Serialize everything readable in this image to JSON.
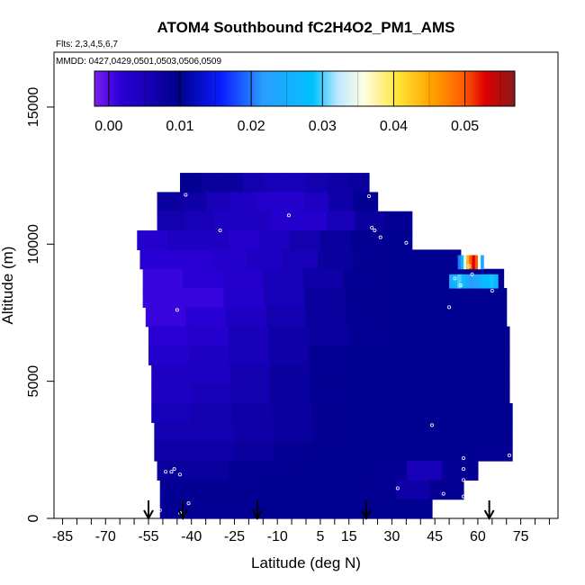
{
  "chart_data": {
    "type": "heatmap",
    "title": "ATOM4 Southbound fC2H4O2_PM1_AMS",
    "flights_label": "Flts: 2,3,4,5,6,7",
    "dates_label": "MMDD: 0427,0429,0501,0503,0506,0509",
    "xlabel": "Latitude (deg N)",
    "ylabel": "Altitude (m)",
    "xlim": [
      -88,
      88
    ],
    "ylim": [
      0,
      17000
    ],
    "x_ticks": [
      -85,
      -70,
      -55,
      -40,
      -25,
      -10,
      5,
      15,
      30,
      45,
      60,
      75
    ],
    "y_ticks": [
      0,
      5000,
      10000,
      15000
    ],
    "colorbar": {
      "range": [
        -0.002,
        0.057
      ],
      "ticks": [
        "0.00",
        "0.01",
        "0.02",
        "0.03",
        "0.04",
        "0.05"
      ],
      "tick_values": [
        0.0,
        0.01,
        0.02,
        0.03,
        0.04,
        0.05
      ],
      "colors": [
        "#7d1ef0",
        "#2a00d8",
        "#00008c",
        "#0a1cff",
        "#2a9cff",
        "#00c2ff",
        "#bfe8ff",
        "#ffffe6",
        "#ffe63a",
        "#ffa500",
        "#ff5a00",
        "#dc0000",
        "#8b1a1a"
      ],
      "color_stops": [
        0.0,
        0.06,
        0.2,
        0.3,
        0.4,
        0.52,
        0.58,
        0.64,
        0.72,
        0.8,
        0.88,
        0.93,
        1.0
      ]
    },
    "field_rows": [
      {
        "alt": 11900,
        "lat": [
          -44,
          22
        ],
        "c": [
          0.009,
          0.008,
          0.008,
          0.006,
          0.005,
          0.005,
          0.006,
          0.007,
          0.008
        ]
      },
      {
        "alt": 11200,
        "lat": [
          -52,
          25
        ],
        "c": [
          0.008,
          0.007,
          0.005,
          0.004,
          0.003,
          0.003,
          0.004,
          0.007,
          0.009
        ]
      },
      {
        "alt": 10500,
        "lat": [
          -52,
          37
        ],
        "c": [
          0.006,
          0.005,
          0.004,
          0.004,
          0.003,
          0.003,
          0.005,
          0.008,
          0.009
        ]
      },
      {
        "alt": 9800,
        "lat": [
          -59,
          37
        ],
        "c": [
          0.003,
          0.004,
          0.004,
          0.003,
          0.004,
          0.006,
          0.008,
          0.009,
          0.01
        ]
      },
      {
        "alt": 9100,
        "lat": [
          -58,
          54
        ],
        "c": [
          0.002,
          0.002,
          0.003,
          0.004,
          0.005,
          0.008,
          0.009,
          0.01,
          0.01
        ]
      },
      {
        "alt": 8400,
        "lat": [
          -57,
          69
        ],
        "c": [
          0.001,
          0.002,
          0.003,
          0.005,
          0.007,
          0.009,
          0.01,
          0.01,
          0.01
        ]
      },
      {
        "alt": 7700,
        "lat": [
          -57,
          70
        ],
        "c": [
          0.001,
          0.001,
          0.003,
          0.005,
          0.008,
          0.009,
          0.01,
          0.01,
          0.01
        ]
      },
      {
        "alt": 7000,
        "lat": [
          -56,
          70
        ],
        "c": [
          0.001,
          0.002,
          0.004,
          0.006,
          0.008,
          0.009,
          0.01,
          0.01,
          0.01
        ]
      },
      {
        "alt": 6300,
        "lat": [
          -55,
          71
        ],
        "c": [
          0.002,
          0.003,
          0.005,
          0.007,
          0.008,
          0.009,
          0.01,
          0.01,
          0.01
        ]
      },
      {
        "alt": 5600,
        "lat": [
          -55,
          71
        ],
        "c": [
          0.003,
          0.004,
          0.005,
          0.007,
          0.009,
          0.01,
          0.01,
          0.01,
          0.01
        ]
      },
      {
        "alt": 4900,
        "lat": [
          -54,
          71
        ],
        "c": [
          0.004,
          0.004,
          0.006,
          0.008,
          0.009,
          0.01,
          0.01,
          0.01,
          0.01
        ]
      },
      {
        "alt": 4200,
        "lat": [
          -54,
          71
        ],
        "c": [
          0.004,
          0.005,
          0.006,
          0.008,
          0.009,
          0.01,
          0.01,
          0.01,
          0.01
        ]
      },
      {
        "alt": 3500,
        "lat": [
          -54,
          72
        ],
        "c": [
          0.005,
          0.006,
          0.007,
          0.008,
          0.009,
          0.01,
          0.01,
          0.01,
          0.01
        ]
      },
      {
        "alt": 2800,
        "lat": [
          -53,
          72
        ],
        "c": [
          0.006,
          0.006,
          0.007,
          0.008,
          0.009,
          0.01,
          0.01,
          0.01,
          0.01
        ]
      },
      {
        "alt": 2100,
        "lat": [
          -53,
          72
        ],
        "c": [
          0.007,
          0.007,
          0.008,
          0.009,
          0.01,
          0.01,
          0.01,
          0.01,
          0.009
        ]
      },
      {
        "alt": 1400,
        "lat": [
          -52,
          60
        ],
        "c": [
          0.008,
          0.008,
          0.009,
          0.009,
          0.01,
          0.01,
          0.009,
          0.005,
          0.009
        ]
      },
      {
        "alt": 700,
        "lat": [
          -51,
          55
        ],
        "c": [
          0.009,
          0.009,
          0.009,
          0.01,
          0.01,
          0.01,
          0.009,
          0.007,
          0.009
        ]
      },
      {
        "alt": 0,
        "lat": [
          -51,
          44
        ],
        "c": [
          0.009,
          0.009,
          0.009,
          0.01,
          0.01,
          0.01,
          0.01,
          0.01,
          0.01
        ]
      }
    ],
    "hotspot": {
      "alt": 8400,
      "lat": [
        50,
        67
      ],
      "c": [
        0.024,
        0.027,
        0.03,
        0.027,
        0.024,
        0.022,
        0.023,
        0.025,
        0.027,
        0.028,
        0.029,
        0.026
      ]
    },
    "hotspot_top": {
      "alt": 9100,
      "lat": [
        53,
        62
      ],
      "c": [
        0.02,
        0.026,
        0.034,
        0.044,
        0.05,
        0.053,
        0.05,
        0.035,
        0.024
      ]
    },
    "sample_points": [
      [
        -42,
        11800
      ],
      [
        22,
        11750
      ],
      [
        -6,
        11050
      ],
      [
        -30,
        10500
      ],
      [
        24,
        10500
      ],
      [
        23,
        10600
      ],
      [
        26,
        10250
      ],
      [
        35,
        10050
      ],
      [
        57,
        9200
      ],
      [
        58,
        8900
      ],
      [
        52,
        8750
      ],
      [
        54,
        8500
      ],
      [
        65,
        8300
      ],
      [
        50,
        7700
      ],
      [
        -45,
        7600
      ],
      [
        44,
        3400
      ],
      [
        -49,
        1700
      ],
      [
        -47,
        1700
      ],
      [
        -46,
        1800
      ],
      [
        -44,
        1600
      ],
      [
        55,
        2200
      ],
      [
        55,
        1800
      ],
      [
        55,
        1400
      ],
      [
        32,
        1100
      ],
      [
        55,
        800
      ],
      [
        48,
        900
      ],
      [
        45,
        550
      ],
      [
        -41,
        550
      ],
      [
        -51,
        300
      ],
      [
        -44,
        200
      ],
      [
        71,
        2300
      ]
    ],
    "arrows_lat": [
      -55,
      -43,
      -17,
      21,
      64
    ]
  }
}
